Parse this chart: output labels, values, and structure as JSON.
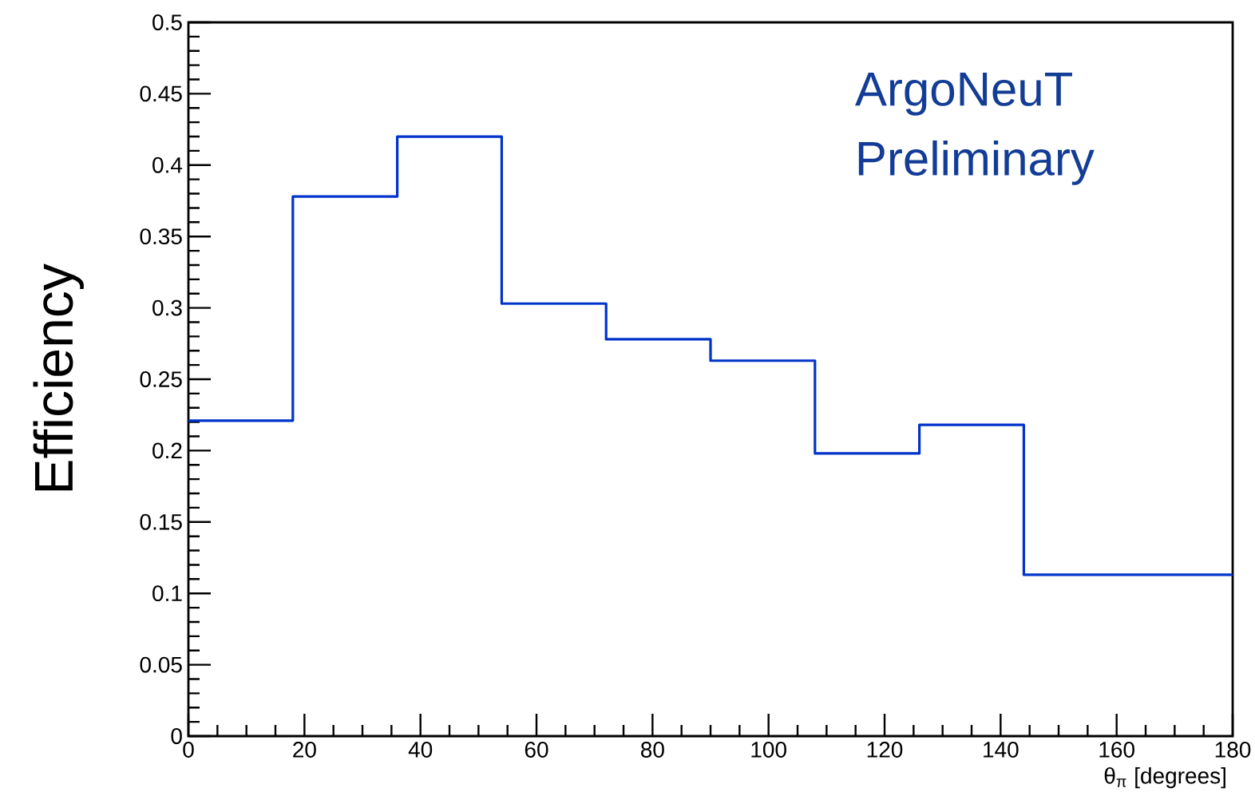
{
  "chart_data": {
    "type": "histogram",
    "xlabel": "θ$_{π}$ [degrees]",
    "ylabel": "Efficiency",
    "annotations": [
      "ArgoNeuT",
      "Preliminary"
    ],
    "bins": [
      0,
      18,
      36,
      54,
      72,
      90,
      108,
      126,
      144,
      162,
      180
    ],
    "values": [
      0.221,
      0.378,
      0.42,
      0.303,
      0.278,
      0.263,
      0.198,
      0.218,
      0.113,
      0.113
    ],
    "color": "#0033cc",
    "xlim": [
      0,
      180
    ],
    "ylim": [
      0,
      0.5
    ],
    "xticks": [
      0,
      20,
      40,
      60,
      80,
      100,
      120,
      140,
      160,
      180
    ],
    "yticks": [
      0,
      0.05,
      0.1,
      0.15,
      0.2,
      0.25,
      0.3,
      0.35,
      0.4,
      0.45,
      0.5
    ]
  }
}
